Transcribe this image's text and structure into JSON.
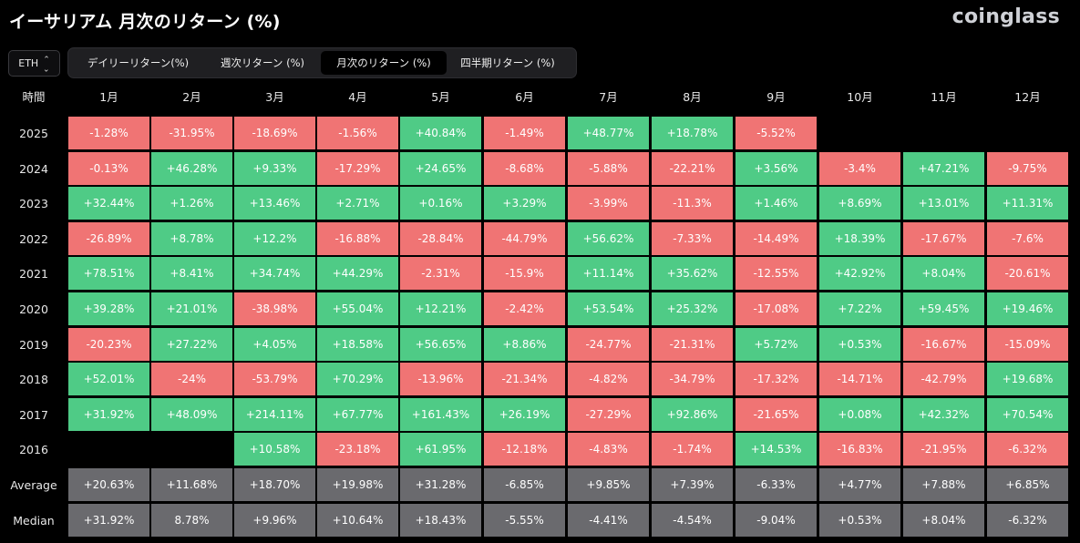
{
  "title": "イーサリアム 月次のリターン (%)",
  "logo": "coinglass",
  "asset": "ETH",
  "tabs": [
    {
      "label": "デイリーリターン(%)",
      "active": false
    },
    {
      "label": "週次リターン (%)",
      "active": false
    },
    {
      "label": "月次のリターン (%)",
      "active": true
    },
    {
      "label": "四半期リターン (%)",
      "active": false
    }
  ],
  "colors": {
    "positive": "#4fcb86",
    "negative": "#f07474",
    "summary": "#6a6a6e"
  },
  "table": {
    "corner_label": "時間",
    "months": [
      "1月",
      "2月",
      "3月",
      "4月",
      "5月",
      "6月",
      "7月",
      "8月",
      "9月",
      "10月",
      "11月",
      "12月"
    ],
    "rows": [
      {
        "year": "2025",
        "values": [
          "-1.28%",
          "-31.95%",
          "-18.69%",
          "-1.56%",
          "+40.84%",
          "-1.49%",
          "+48.77%",
          "+18.78%",
          "-5.52%",
          "",
          "",
          ""
        ]
      },
      {
        "year": "2024",
        "values": [
          "-0.13%",
          "+46.28%",
          "+9.33%",
          "-17.29%",
          "+24.65%",
          "-8.68%",
          "-5.88%",
          "-22.21%",
          "+3.56%",
          "-3.4%",
          "+47.21%",
          "-9.75%"
        ]
      },
      {
        "year": "2023",
        "values": [
          "+32.44%",
          "+1.26%",
          "+13.46%",
          "+2.71%",
          "+0.16%",
          "+3.29%",
          "-3.99%",
          "-11.3%",
          "+1.46%",
          "+8.69%",
          "+13.01%",
          "+11.31%"
        ]
      },
      {
        "year": "2022",
        "values": [
          "-26.89%",
          "+8.78%",
          "+12.2%",
          "-16.88%",
          "-28.84%",
          "-44.79%",
          "+56.62%",
          "-7.33%",
          "-14.49%",
          "+18.39%",
          "-17.67%",
          "-7.6%"
        ]
      },
      {
        "year": "2021",
        "values": [
          "+78.51%",
          "+8.41%",
          "+34.74%",
          "+44.29%",
          "-2.31%",
          "-15.9%",
          "+11.14%",
          "+35.62%",
          "-12.55%",
          "+42.92%",
          "+8.04%",
          "-20.61%"
        ]
      },
      {
        "year": "2020",
        "values": [
          "+39.28%",
          "+21.01%",
          "-38.98%",
          "+55.04%",
          "+12.21%",
          "-2.42%",
          "+53.54%",
          "+25.32%",
          "-17.08%",
          "+7.22%",
          "+59.45%",
          "+19.46%"
        ]
      },
      {
        "year": "2019",
        "values": [
          "-20.23%",
          "+27.22%",
          "+4.05%",
          "+18.58%",
          "+56.65%",
          "+8.86%",
          "-24.77%",
          "-21.31%",
          "+5.72%",
          "+0.53%",
          "-16.67%",
          "-15.09%"
        ]
      },
      {
        "year": "2018",
        "values": [
          "+52.01%",
          "-24%",
          "-53.79%",
          "+70.29%",
          "-13.96%",
          "-21.34%",
          "-4.82%",
          "-34.79%",
          "-17.32%",
          "-14.71%",
          "-42.79%",
          "+19.68%"
        ]
      },
      {
        "year": "2017",
        "values": [
          "+31.92%",
          "+48.09%",
          "+214.11%",
          "+67.77%",
          "+161.43%",
          "+26.19%",
          "-27.29%",
          "+92.86%",
          "-21.65%",
          "+0.08%",
          "+42.32%",
          "+70.54%"
        ]
      },
      {
        "year": "2016",
        "values": [
          "",
          "",
          "+10.58%",
          "-23.18%",
          "+61.95%",
          "-12.18%",
          "-4.83%",
          "-1.74%",
          "+14.53%",
          "-16.83%",
          "-21.95%",
          "-6.32%"
        ]
      }
    ],
    "summary_rows": [
      {
        "label": "Average",
        "values": [
          "+20.63%",
          "+11.68%",
          "+18.70%",
          "+19.98%",
          "+31.28%",
          "-6.85%",
          "+9.85%",
          "+7.39%",
          "-6.33%",
          "+4.77%",
          "+7.88%",
          "+6.85%"
        ]
      },
      {
        "label": "Median",
        "values": [
          "+31.92%",
          "8.78%",
          "+9.96%",
          "+10.64%",
          "+18.43%",
          "-5.55%",
          "-4.41%",
          "-4.54%",
          "-9.04%",
          "+0.53%",
          "+8.04%",
          "-6.32%"
        ]
      }
    ]
  }
}
